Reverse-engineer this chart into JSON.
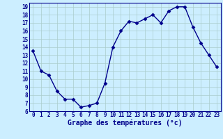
{
  "hours": [
    0,
    1,
    2,
    3,
    4,
    5,
    6,
    7,
    8,
    9,
    10,
    11,
    12,
    13,
    14,
    15,
    16,
    17,
    18,
    19,
    20,
    21,
    22,
    23
  ],
  "temperatures": [
    13.5,
    11.0,
    10.5,
    8.5,
    7.5,
    7.5,
    6.5,
    6.7,
    7.0,
    9.5,
    14.0,
    16.0,
    17.2,
    17.0,
    17.5,
    18.0,
    17.0,
    18.5,
    19.0,
    19.0,
    16.5,
    14.5,
    13.0,
    11.5
  ],
  "line_color": "#00008B",
  "marker": "D",
  "marker_size": 2.5,
  "bg_color": "#cceeff",
  "grid_color": "#aacccc",
  "xlabel": "Graphe des températures (°c)",
  "ylim": [
    6,
    19.5
  ],
  "yticks": [
    6,
    7,
    8,
    9,
    10,
    11,
    12,
    13,
    14,
    15,
    16,
    17,
    18,
    19
  ],
  "xlim": [
    -0.5,
    23.5
  ],
  "xticks": [
    0,
    1,
    2,
    3,
    4,
    5,
    6,
    7,
    8,
    9,
    10,
    11,
    12,
    13,
    14,
    15,
    16,
    17,
    18,
    19,
    20,
    21,
    22,
    23
  ],
  "xtick_labels": [
    "0",
    "1",
    "2",
    "3",
    "4",
    "5",
    "6",
    "7",
    "8",
    "9",
    "10",
    "11",
    "12",
    "13",
    "14",
    "15",
    "16",
    "17",
    "18",
    "19",
    "20",
    "21",
    "22",
    "23"
  ],
  "tick_fontsize": 5.5,
  "xlabel_fontsize": 7,
  "axis_label_color": "#00008B",
  "tick_color": "#00008B",
  "linewidth": 1.0
}
